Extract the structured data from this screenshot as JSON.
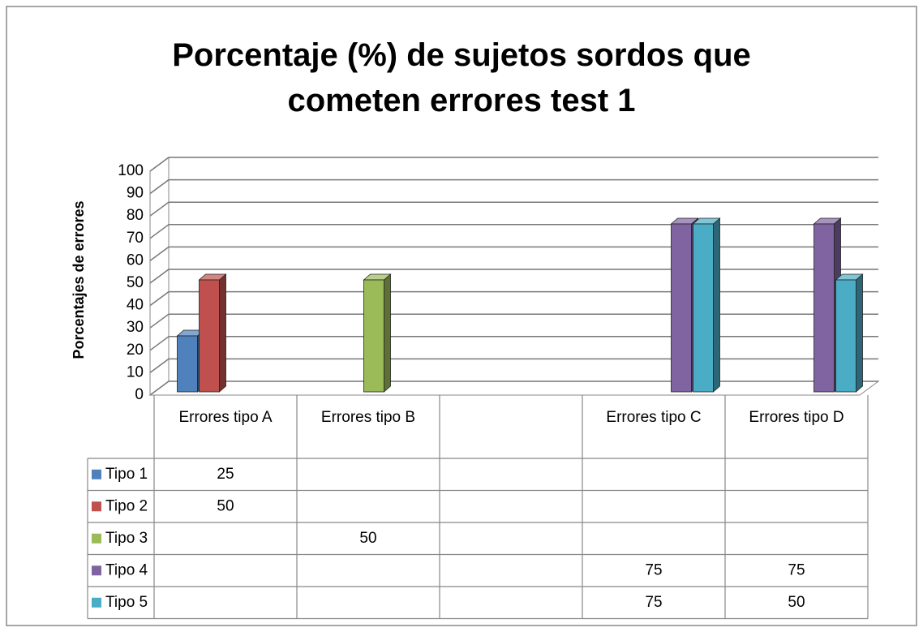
{
  "chart_data": {
    "type": "bar3d",
    "title": "Porcentaje (%) de sujetos sordos que cometen errores test 1",
    "y_label": "Porcentajes de errores",
    "categories": [
      "Errores tipo A",
      "Errores tipo B",
      null,
      "Errores tipo C",
      "Errores tipo D"
    ],
    "series": [
      {
        "name": "Tipo 1",
        "color": "#4f81bd",
        "values": [
          25,
          null,
          null,
          null,
          null
        ]
      },
      {
        "name": "Tipo 2",
        "color": "#c0504d",
        "values": [
          50,
          null,
          null,
          null,
          null
        ]
      },
      {
        "name": "Tipo 3",
        "color": "#9bbb59",
        "values": [
          null,
          50,
          null,
          null,
          null
        ]
      },
      {
        "name": "Tipo 4",
        "color": "#8064a2",
        "values": [
          null,
          null,
          null,
          75,
          75
        ]
      },
      {
        "name": "Tipo 5",
        "color": "#4bacc6",
        "values": [
          null,
          null,
          null,
          75,
          50
        ]
      }
    ],
    "ylim": [
      0,
      100
    ],
    "yticks": [
      0,
      10,
      20,
      30,
      40,
      50,
      60,
      70,
      80,
      90,
      100
    ],
    "grid": true,
    "data_table": true
  }
}
